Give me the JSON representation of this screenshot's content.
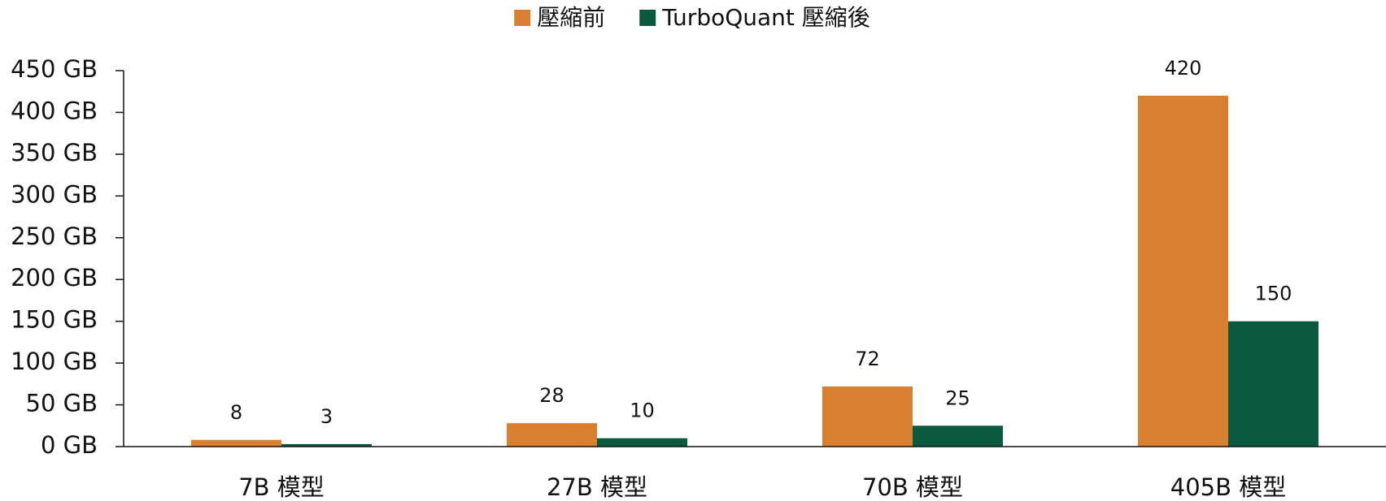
{
  "chart_data": {
    "type": "bar",
    "categories": [
      "7B 模型",
      "27B 模型",
      "70B 模型",
      "405B 模型"
    ],
    "series": [
      {
        "name": "壓縮前",
        "color": "#d98030",
        "values": [
          8,
          28,
          72,
          420
        ]
      },
      {
        "name": "TurboQuant 壓縮後",
        "color": "#0b5a40",
        "values": [
          3,
          10,
          25,
          150
        ]
      }
    ],
    "ylim": [
      0,
      450
    ],
    "yticks": [
      {
        "value": 0,
        "label": "0 GB"
      },
      {
        "value": 50,
        "label": "50 GB"
      },
      {
        "value": 100,
        "label": "100 GB"
      },
      {
        "value": 150,
        "label": "150 GB"
      },
      {
        "value": 200,
        "label": "200 GB"
      },
      {
        "value": 250,
        "label": "250 GB"
      },
      {
        "value": 300,
        "label": "300 GB"
      },
      {
        "value": 350,
        "label": "350 GB"
      },
      {
        "value": 400,
        "label": "400 GB"
      },
      {
        "value": 450,
        "label": "450 GB"
      }
    ],
    "legend": "top"
  }
}
